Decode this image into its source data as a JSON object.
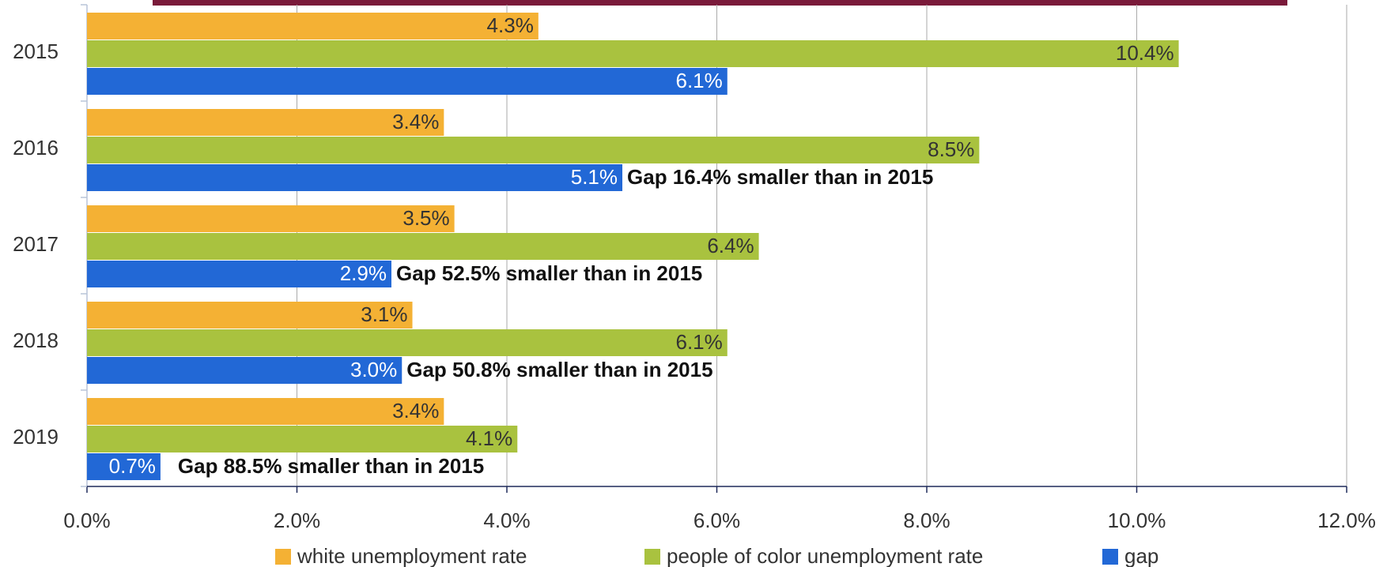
{
  "chart_data": {
    "type": "hbar",
    "categories": [
      "2015",
      "2016",
      "2017",
      "2018",
      "2019"
    ],
    "series": [
      {
        "name": "white unemployment rate",
        "color": "#f4b134",
        "values": [
          4.3,
          3.4,
          3.5,
          3.1,
          3.4
        ],
        "value_labels": [
          "4.3%",
          "3.4%",
          "3.5%",
          "3.1%",
          "3.4%"
        ],
        "label_color": "#333333"
      },
      {
        "name": "people of color unemployment rate",
        "color": "#a9c23f",
        "values": [
          10.4,
          8.5,
          6.4,
          6.1,
          4.1
        ],
        "value_labels": [
          "10.4%",
          "8.5%",
          "6.4%",
          "6.1%",
          "4.1%"
        ],
        "label_color": "#333333"
      },
      {
        "name": "gap",
        "color": "#2268d6",
        "values": [
          6.1,
          5.1,
          2.9,
          3.0,
          0.7
        ],
        "value_labels": [
          "6.1%",
          "5.1%",
          "2.9%",
          "3.0%",
          "0.7%"
        ],
        "label_color": "#ffffff"
      }
    ],
    "annotations": [
      null,
      "Gap 16.4% smaller than in 2015",
      "Gap 52.5% smaller than in 2015",
      "Gap 50.8% smaller than in 2015",
      "Gap 88.5% smaller than in 2015"
    ],
    "xlim": [
      0,
      12
    ],
    "xticks": [
      {
        "value": 0,
        "label": "0.0%"
      },
      {
        "value": 2,
        "label": "2.0%"
      },
      {
        "value": 4,
        "label": "4.0%"
      },
      {
        "value": 6,
        "label": "6.0%"
      },
      {
        "value": 8,
        "label": "8.0%"
      },
      {
        "value": 10,
        "label": "10.0%"
      },
      {
        "value": 12,
        "label": "12.0%"
      }
    ],
    "grid": true,
    "legend": "bottom"
  }
}
